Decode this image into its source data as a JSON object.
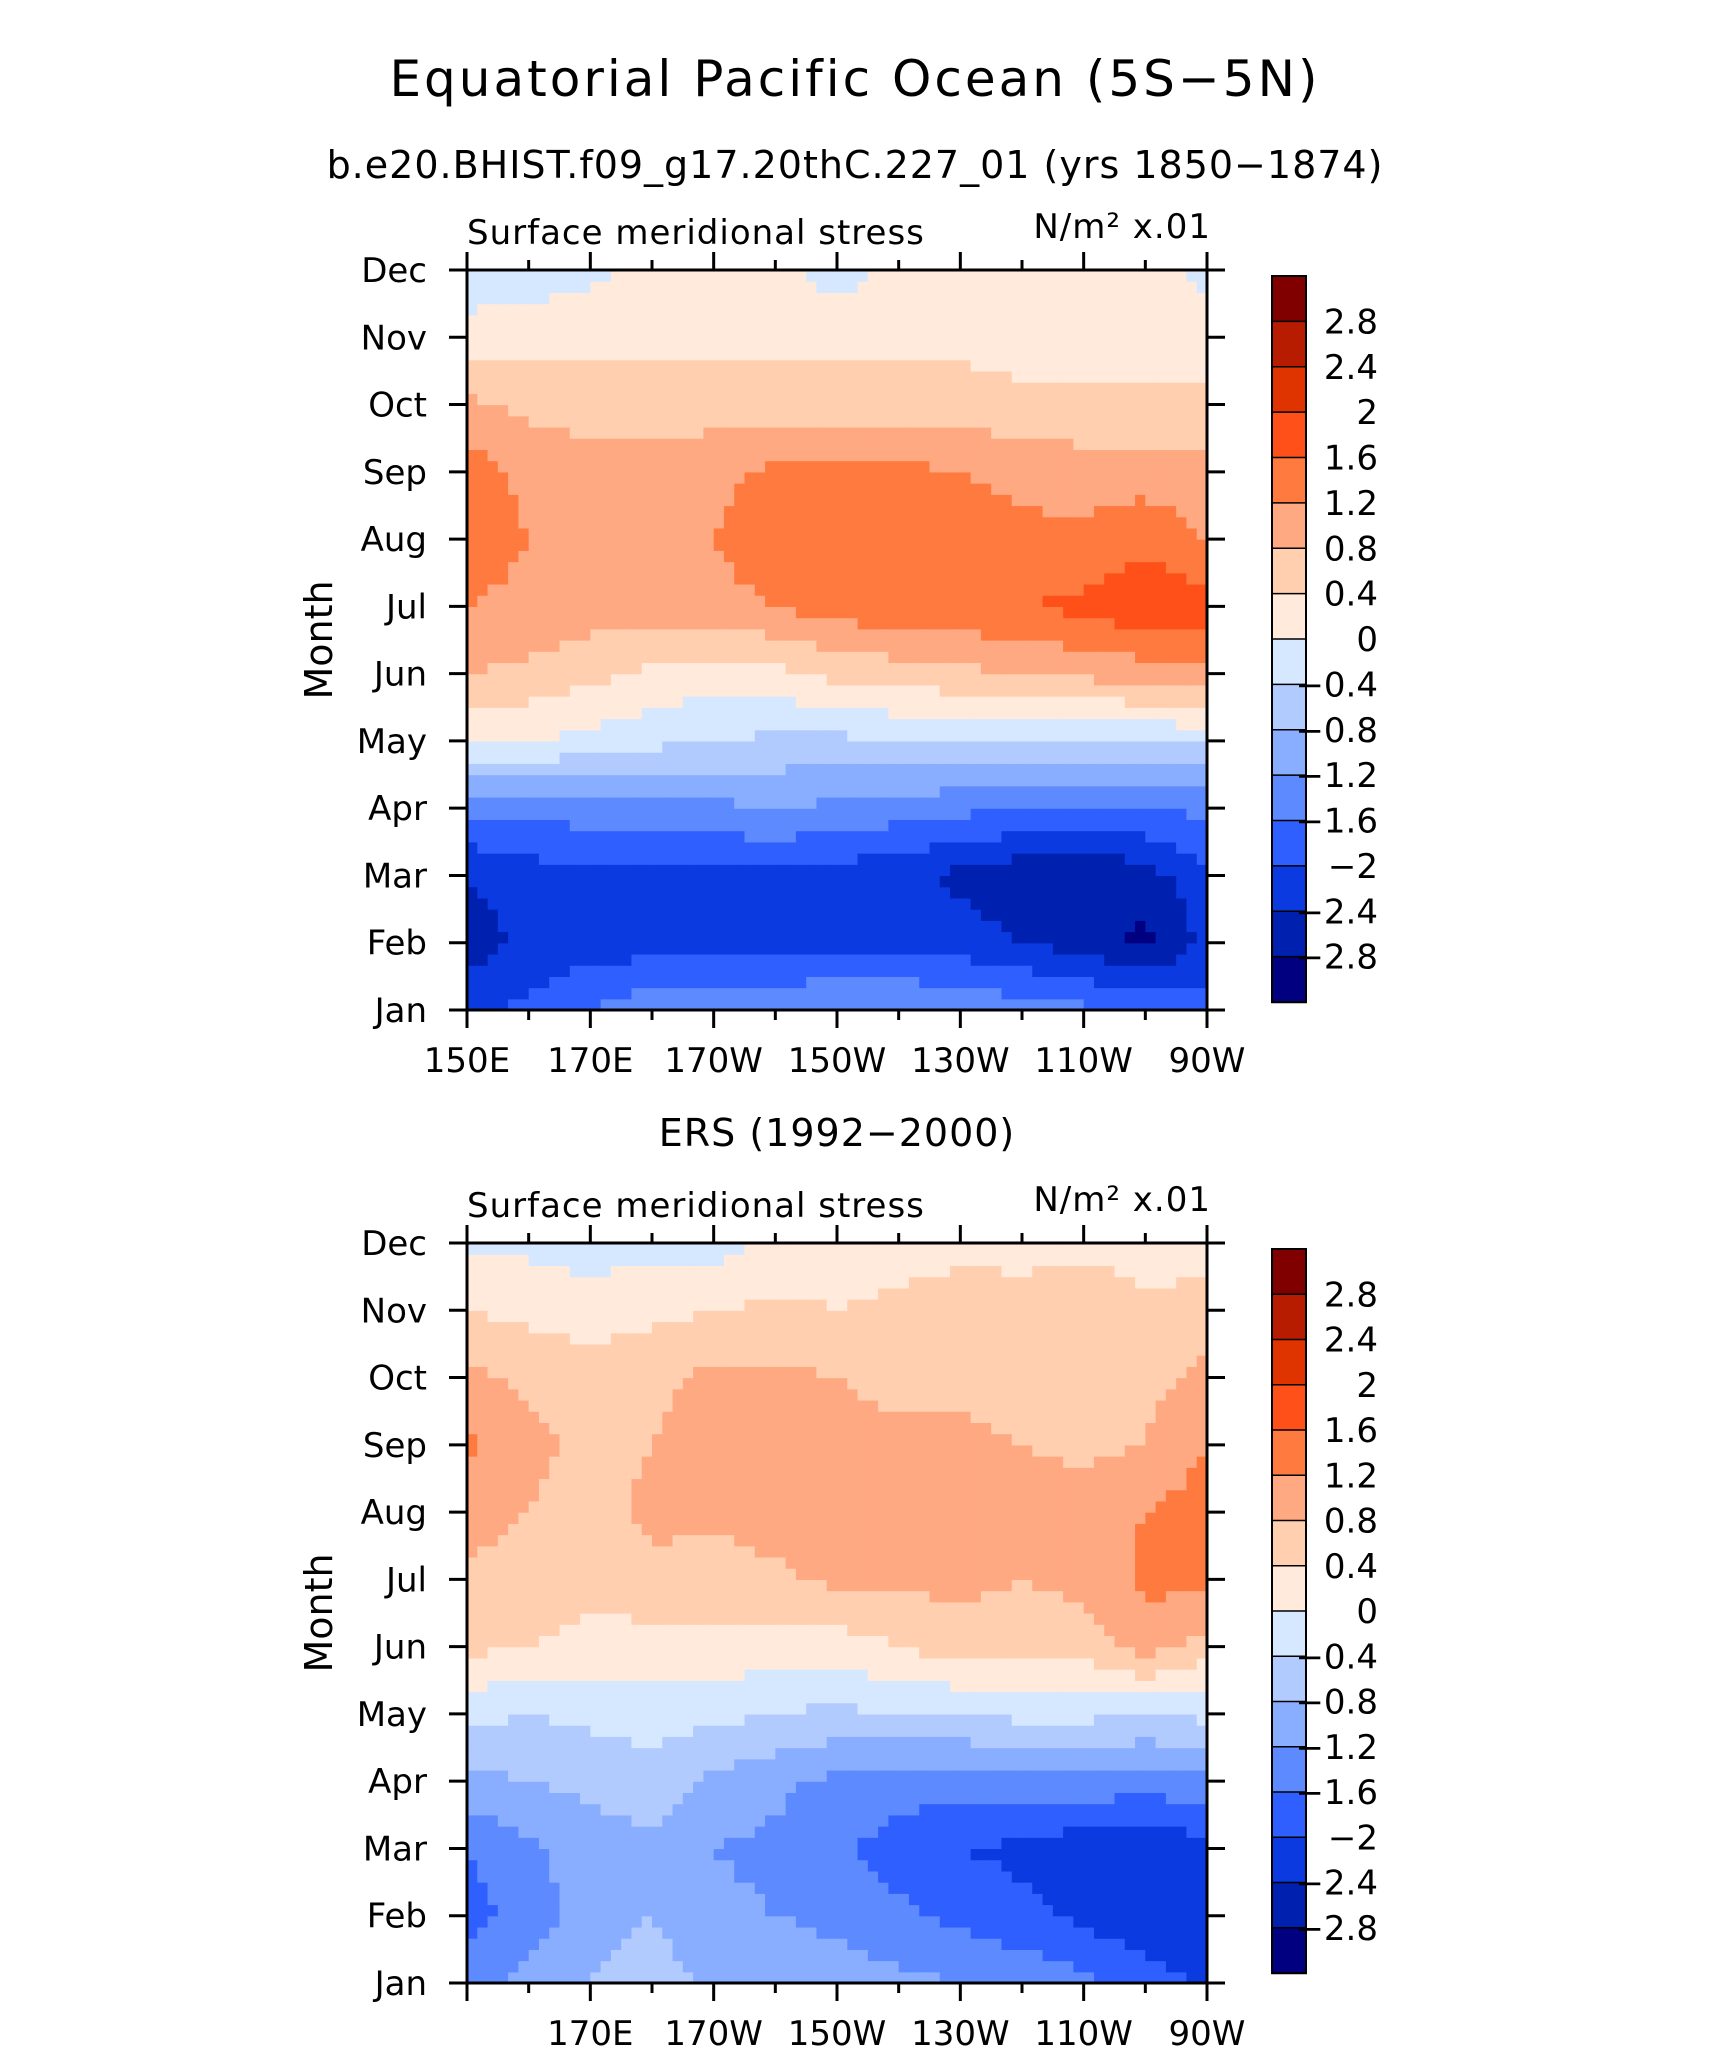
{
  "figure": {
    "title": "Equatorial Pacific Ocean (5S−5N)",
    "subtitle": "b.e20.BHIST.f09_g17.20thC.227_01 (yrs 1850−1874)"
  },
  "colorbar": {
    "labels": [
      "2.8",
      "2.4",
      "2",
      "1.6",
      "1.2",
      "0.8",
      "0.4",
      "0",
      "−0.4",
      "−0.8",
      "−1.2",
      "−1.6",
      "−2",
      "−2.4",
      "−2.8"
    ],
    "colors": [
      "#800000",
      "#b81c00",
      "#e03400",
      "#ff5019",
      "#ff7a3f",
      "#ffa982",
      "#ffcfb0",
      "#ffeadb",
      "#d6e8ff",
      "#b2cbff",
      "#8aaeff",
      "#5d8aff",
      "#2f60ff",
      "#0a3ae0",
      "#0020b0",
      "#000080"
    ]
  },
  "chart_data": [
    {
      "type": "heatmap",
      "id": "model",
      "title": "",
      "left_label": "Surface meridional stress",
      "right_label": "N/m² x.01",
      "xlabel": "",
      "ylabel": "Month",
      "x_ticks": [
        "150E",
        "170E",
        "170W",
        "150W",
        "130W",
        "110W",
        "90W"
      ],
      "y_ticks": [
        "Jan",
        "Feb",
        "Mar",
        "Apr",
        "May",
        "Jun",
        "Jul",
        "Aug",
        "Sep",
        "Oct",
        "Nov",
        "Dec"
      ],
      "xlim": [
        150,
        270
      ],
      "levels": [
        -2.8,
        -2.4,
        -2,
        -1.6,
        -1.2,
        -0.8,
        -0.4,
        0,
        0.4,
        0.8,
        1.2,
        1.6,
        2,
        2.4,
        2.8
      ],
      "lon": [
        150,
        160,
        170,
        180,
        190,
        200,
        210,
        220,
        230,
        240,
        250,
        260,
        270
      ],
      "values": [
        [
          -2.1,
          -1.9,
          -1.6,
          -1.3,
          -1.3,
          -1.3,
          -1.2,
          -1.2,
          -1.3,
          -1.4,
          -1.5,
          -1.7,
          -1.8
        ],
        [
          -2.6,
          -2.3,
          -2.2,
          -2.2,
          -2.1,
          -2.1,
          -2.1,
          -2.1,
          -2.2,
          -2.4,
          -2.6,
          -2.9,
          -2.3
        ],
        [
          -2.4,
          -2.2,
          -2.1,
          -2.1,
          -2.1,
          -2.1,
          -2.2,
          -2.3,
          -2.5,
          -2.7,
          -2.8,
          -2.6,
          -2.1
        ],
        [
          -1.5,
          -1.5,
          -1.4,
          -1.4,
          -1.3,
          -1.2,
          -1.3,
          -1.4,
          -1.5,
          -1.6,
          -1.6,
          -1.6,
          -1.5
        ],
        [
          0.1,
          0.0,
          -0.1,
          -0.3,
          -0.4,
          -0.5,
          -0.5,
          -0.4,
          -0.4,
          -0.4,
          -0.4,
          -0.4,
          -0.3
        ],
        [
          0.8,
          0.7,
          0.5,
          0.3,
          0.2,
          0.3,
          0.5,
          0.6,
          0.7,
          0.8,
          0.9,
          1.0,
          1.1
        ],
        [
          1.2,
          1.1,
          1.0,
          1.0,
          1.1,
          1.2,
          1.4,
          1.5,
          1.5,
          1.6,
          1.7,
          1.9,
          1.8
        ],
        [
          1.4,
          1.2,
          1.1,
          1.1,
          1.2,
          1.4,
          1.5,
          1.5,
          1.4,
          1.3,
          1.3,
          1.5,
          1.2
        ],
        [
          1.4,
          1.1,
          1.0,
          1.0,
          1.1,
          1.3,
          1.3,
          1.3,
          1.2,
          1.1,
          1.0,
          1.0,
          0.9
        ],
        [
          0.9,
          0.7,
          0.6,
          0.6,
          0.6,
          0.6,
          0.6,
          0.6,
          0.6,
          0.5,
          0.5,
          0.5,
          0.5
        ],
        [
          0.2,
          0.2,
          0.3,
          0.3,
          0.3,
          0.3,
          0.3,
          0.3,
          0.3,
          0.2,
          0.2,
          0.2,
          0.2
        ],
        [
          -0.3,
          -0.2,
          -0.1,
          0.1,
          0.1,
          0.1,
          -0.2,
          0.1,
          0.1,
          0.1,
          0.1,
          0.1,
          -0.1
        ]
      ]
    },
    {
      "type": "heatmap",
      "id": "obs",
      "title": "ERS (1992−2000)",
      "left_label": "Surface meridional stress",
      "right_label": "N/m² x.01",
      "xlabel": "",
      "ylabel": "Month",
      "x_ticks": [
        "170E",
        "170W",
        "150W",
        "130W",
        "110W",
        "90W"
      ],
      "y_ticks": [
        "Jan",
        "Feb",
        "Mar",
        "Apr",
        "May",
        "Jun",
        "Jul",
        "Aug",
        "Sep",
        "Oct",
        "Nov",
        "Dec"
      ],
      "xlim": [
        150,
        270
      ],
      "levels": [
        -2.8,
        -2.4,
        -2,
        -1.6,
        -1.2,
        -0.8,
        -0.4,
        0,
        0.4,
        0.8,
        1.2,
        1.6,
        2,
        2.4,
        2.8
      ],
      "lon": [
        150,
        160,
        170,
        180,
        190,
        200,
        210,
        220,
        230,
        240,
        250,
        260,
        270
      ],
      "values": [
        [
          -1.3,
          -1.1,
          -0.8,
          -0.6,
          -0.9,
          -0.9,
          -1.0,
          -1.1,
          -1.2,
          -1.3,
          -1.5,
          -1.8,
          -2.1
        ],
        [
          -1.8,
          -1.4,
          -1.0,
          -0.8,
          -1.1,
          -1.2,
          -1.3,
          -1.5,
          -1.7,
          -1.9,
          -2.1,
          -2.3,
          -2.2
        ],
        [
          -1.6,
          -1.3,
          -1.0,
          -0.9,
          -1.2,
          -1.3,
          -1.5,
          -1.8,
          -2.0,
          -2.1,
          -2.3,
          -2.4,
          -2.1
        ],
        [
          -0.9,
          -0.8,
          -0.7,
          -0.6,
          -0.9,
          -1.1,
          -1.3,
          -1.4,
          -1.4,
          -1.3,
          -1.3,
          -1.4,
          -1.3
        ],
        [
          -0.3,
          -0.4,
          -0.3,
          -0.2,
          -0.3,
          -0.4,
          -0.5,
          -0.4,
          -0.4,
          -0.3,
          -0.3,
          -0.4,
          -0.3
        ],
        [
          0.5,
          0.4,
          0.3,
          0.2,
          0.3,
          0.2,
          0.2,
          0.4,
          0.6,
          0.5,
          0.6,
          1.0,
          0.6
        ],
        [
          0.7,
          0.6,
          0.5,
          0.7,
          0.6,
          0.7,
          0.9,
          0.9,
          0.9,
          0.8,
          0.9,
          1.3,
          1.3
        ],
        [
          1.0,
          0.8,
          0.6,
          0.9,
          0.9,
          1.0,
          1.0,
          1.1,
          1.1,
          1.0,
          1.0,
          1.2,
          1.4
        ],
        [
          1.3,
          0.9,
          0.7,
          0.8,
          1.0,
          1.0,
          0.9,
          0.9,
          0.9,
          0.8,
          0.7,
          0.8,
          1.2
        ],
        [
          0.9,
          0.7,
          0.6,
          0.7,
          0.9,
          0.9,
          0.8,
          0.7,
          0.7,
          0.6,
          0.7,
          0.7,
          0.9
        ],
        [
          0.4,
          0.3,
          0.2,
          0.3,
          0.4,
          0.5,
          0.4,
          0.5,
          0.6,
          0.5,
          0.7,
          0.5,
          0.6
        ],
        [
          -0.1,
          -0.1,
          -0.2,
          -0.1,
          -0.2,
          0.1,
          0.2,
          0.2,
          0.3,
          0.3,
          0.3,
          0.2,
          0.2
        ]
      ]
    }
  ]
}
